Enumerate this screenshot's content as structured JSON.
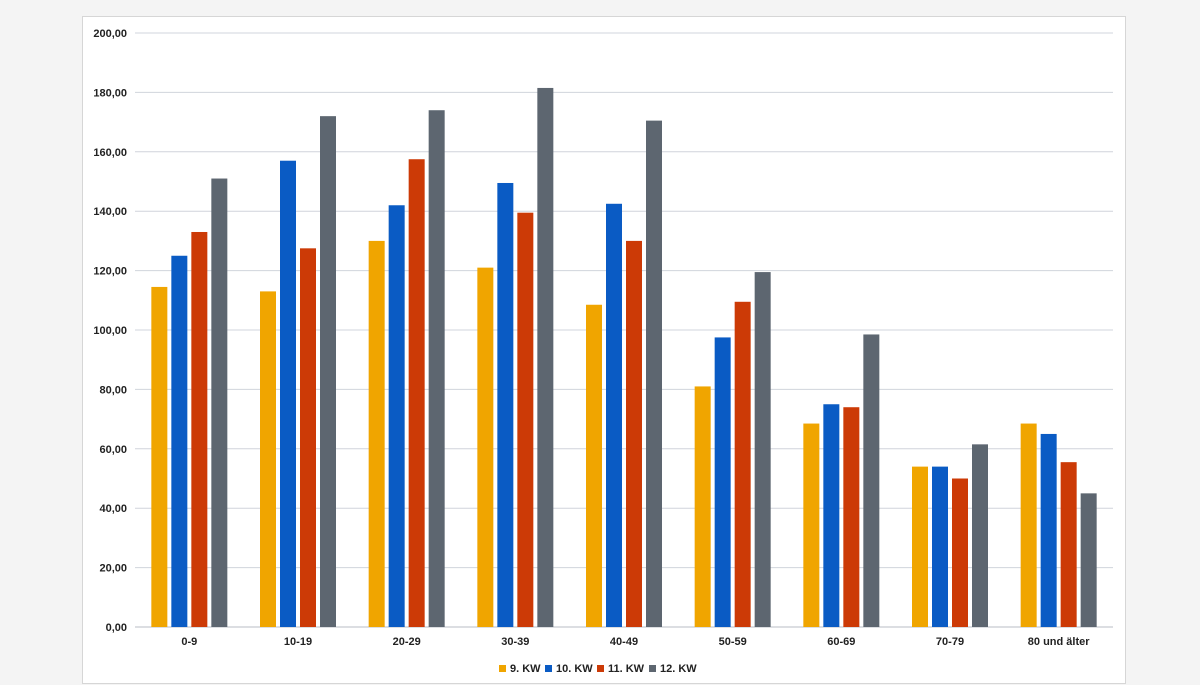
{
  "chart_data": {
    "type": "bar",
    "title": "",
    "xlabel": "",
    "ylabel": "",
    "ylim": [
      0,
      200
    ],
    "ytick_step": 20,
    "grid": true,
    "legend_position": "bottom",
    "categories": [
      "0-9",
      "10-19",
      "20-29",
      "30-39",
      "40-49",
      "50-59",
      "60-69",
      "70-79",
      "80 und älter"
    ],
    "series": [
      {
        "name": "9. KW",
        "color": "#f0a500",
        "values": [
          114.5,
          113,
          130,
          121,
          108.5,
          81,
          68.5,
          54,
          68.5
        ]
      },
      {
        "name": "10. KW",
        "color": "#0a5bc4",
        "values": [
          125,
          157,
          142,
          149.5,
          142.5,
          97.5,
          75,
          54,
          65
        ]
      },
      {
        "name": "11. KW",
        "color": "#cc3a06",
        "values": [
          133,
          127.5,
          157.5,
          139.5,
          130,
          109.5,
          74,
          50,
          55.5
        ]
      },
      {
        "name": "12. KW",
        "color": "#5d6670",
        "values": [
          151,
          172,
          174,
          181.5,
          170.5,
          119.5,
          98.5,
          61.5,
          45
        ]
      }
    ]
  }
}
